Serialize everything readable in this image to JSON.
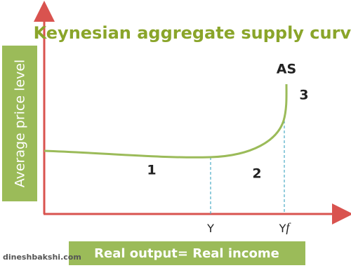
{
  "title": "Keynesian aggregate supply curve",
  "y_axis_label": "Average price level",
  "x_axis_label": "Real output= Real income",
  "curve_label": "AS",
  "regions": [
    "1",
    "2",
    "3"
  ],
  "markers": [
    {
      "label": [
        "Y"
      ]
    },
    {
      "label": [
        "Y",
        "f"
      ]
    }
  ],
  "watermark": "dineshbakshi.com"
}
